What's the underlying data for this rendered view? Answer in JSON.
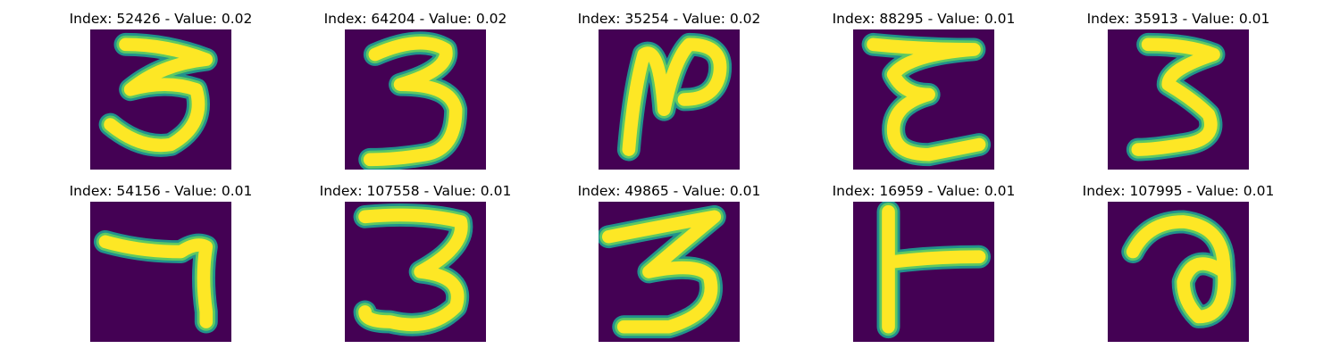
{
  "figure": {
    "background": "#ffffff",
    "colormap": "viridis",
    "panels": [
      {
        "title": "Index: 52426 - Value: 0.02",
        "glyph": "3"
      },
      {
        "title": "Index: 64204 - Value: 0.02",
        "glyph": "3"
      },
      {
        "title": "Index: 35254 - Value: 0.02",
        "glyph": "N"
      },
      {
        "title": "Index: 88295 - Value: 0.01",
        "glyph": "3"
      },
      {
        "title": "Index: 35913 - Value: 0.01",
        "glyph": "3"
      },
      {
        "title": "Index: 54156 - Value: 0.01",
        "glyph": "7"
      },
      {
        "title": "Index: 107558 - Value: 0.01",
        "glyph": "3"
      },
      {
        "title": "Index: 49865 - Value: 0.01",
        "glyph": "3"
      },
      {
        "title": "Index: 16959 - Value: 0.01",
        "glyph": "T"
      },
      {
        "title": "Index: 107995 - Value: 0.01",
        "glyph": "a"
      }
    ],
    "colors": {
      "background": "#440154",
      "edge": "#21918c",
      "mid": "#5ec962",
      "core": "#fde725"
    }
  }
}
